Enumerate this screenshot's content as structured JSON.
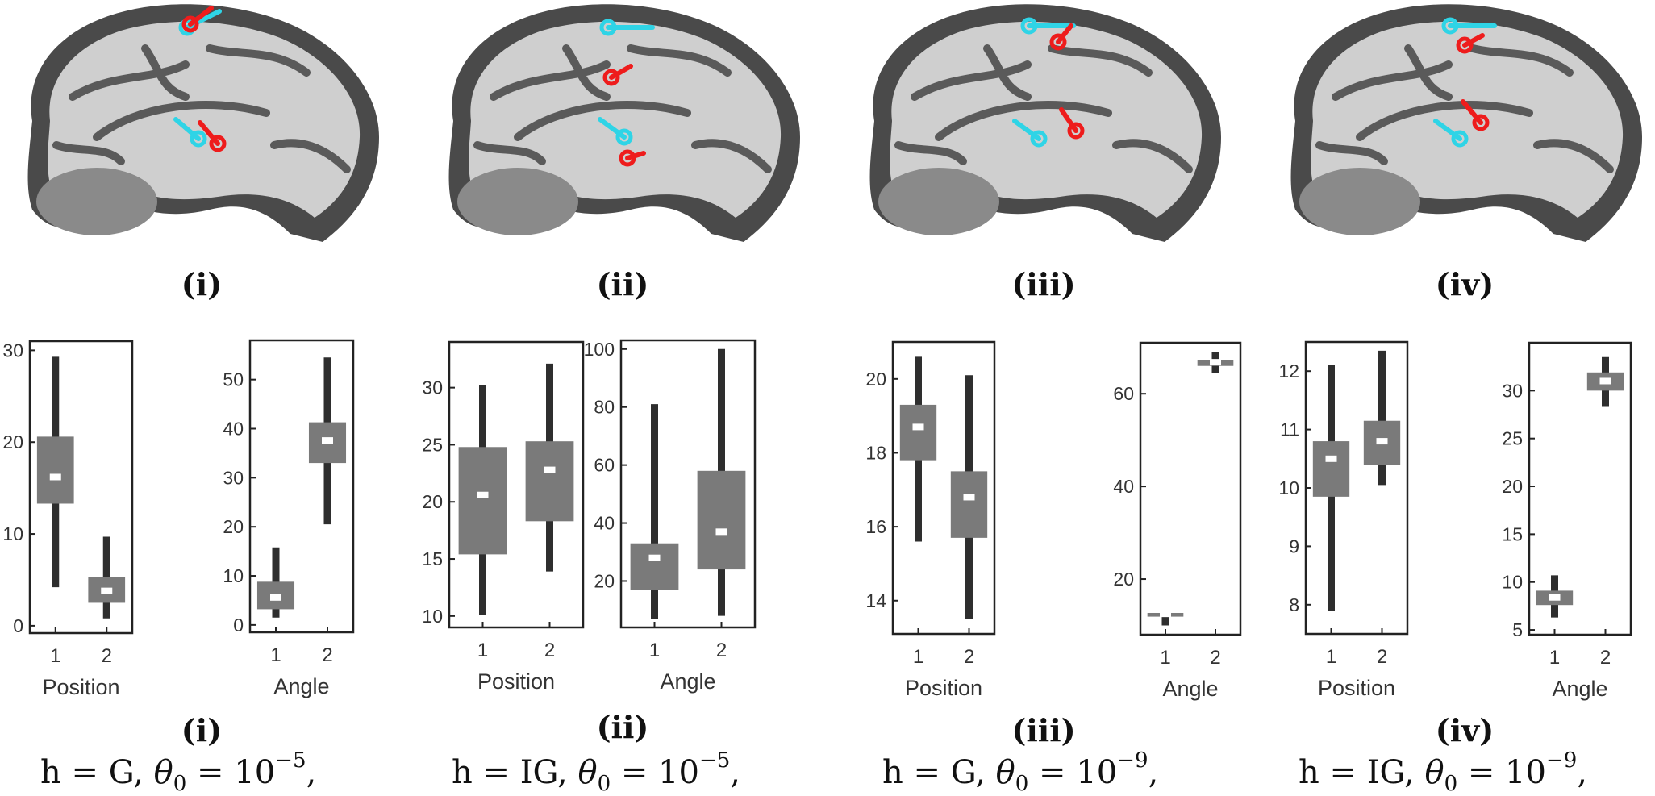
{
  "panels": [
    {
      "label": "(i)",
      "caption": {
        "h": "G",
        "exponent": "−5"
      },
      "chart_data": [
        {
          "type": "box",
          "xlabel": "Position",
          "categories": [
            "1",
            "2"
          ],
          "ylim": [
            -0.8,
            31
          ],
          "yticks": [
            0,
            10,
            20,
            30
          ],
          "boxes": [
            {
              "min": 4.2,
              "q1": 13.3,
              "median": 16.2,
              "q3": 20.6,
              "max": 29.3
            },
            {
              "min": 0.8,
              "q1": 2.5,
              "median": 3.8,
              "q3": 5.3,
              "max": 9.7
            }
          ]
        },
        {
          "type": "box",
          "xlabel": "Angle",
          "categories": [
            "1",
            "2"
          ],
          "ylim": [
            -1.5,
            58
          ],
          "yticks": [
            0,
            10,
            20,
            30,
            40,
            50
          ],
          "boxes": [
            {
              "min": 1.5,
              "q1": 3.2,
              "median": 5.6,
              "q3": 8.8,
              "max": 15.8
            },
            {
              "min": 20.5,
              "q1": 33.0,
              "median": 37.6,
              "q3": 41.3,
              "max": 54.5
            }
          ]
        }
      ]
    },
    {
      "label": "(ii)",
      "caption": {
        "h": "IG",
        "exponent": "−5"
      },
      "chart_data": [
        {
          "type": "box",
          "xlabel": "Position",
          "categories": [
            "1",
            "2"
          ],
          "ylim": [
            9.0,
            34.0
          ],
          "yticks": [
            10,
            15,
            20,
            25,
            30
          ],
          "boxes": [
            {
              "min": 10.1,
              "q1": 15.4,
              "median": 20.6,
              "q3": 24.8,
              "max": 30.2
            },
            {
              "min": 13.9,
              "q1": 18.3,
              "median": 22.8,
              "q3": 25.3,
              "max": 32.1
            }
          ]
        },
        {
          "type": "box",
          "xlabel": "Angle",
          "categories": [
            "1",
            "2"
          ],
          "ylim": [
            4.0,
            103.0
          ],
          "yticks": [
            20,
            40,
            60,
            80,
            100
          ],
          "boxes": [
            {
              "min": 7,
              "q1": 17,
              "median": 28,
              "q3": 33,
              "max": 81
            },
            {
              "min": 8,
              "q1": 24,
              "median": 37,
              "q3": 58,
              "max": 100
            }
          ]
        }
      ]
    },
    {
      "label": "(iii)",
      "caption": {
        "h": "G",
        "exponent": "−9"
      },
      "chart_data": [
        {
          "type": "box",
          "xlabel": "Position",
          "categories": [
            "1",
            "2"
          ],
          "ylim": [
            13.1,
            21.0
          ],
          "yticks": [
            14,
            16,
            18,
            20
          ],
          "boxes": [
            {
              "min": 15.6,
              "q1": 17.8,
              "median": 18.7,
              "q3": 19.3,
              "max": 20.6
            },
            {
              "min": 13.5,
              "q1": 15.7,
              "median": 16.8,
              "q3": 17.5,
              "max": 20.1
            }
          ]
        },
        {
          "type": "box",
          "xlabel": "Angle",
          "categories": [
            "1",
            "2"
          ],
          "ylim": [
            8.0,
            71.0
          ],
          "yticks": [
            20,
            40,
            60
          ],
          "boxes": [
            {
              "min": 10.0,
              "q1": 11.9,
              "median": 12.5,
              "q3": 12.7,
              "max": 13.0
            },
            {
              "min": 64.5,
              "q1": 66.0,
              "median": 66.8,
              "q3": 67.2,
              "max": 69.0
            }
          ]
        }
      ]
    },
    {
      "label": "(iv)",
      "caption": {
        "h": "IG",
        "exponent": "−9"
      },
      "chart_data": [
        {
          "type": "box",
          "xlabel": "Position",
          "categories": [
            "1",
            "2"
          ],
          "ylim": [
            7.5,
            12.5
          ],
          "yticks": [
            8,
            9,
            10,
            11,
            12
          ],
          "boxes": [
            {
              "min": 7.9,
              "q1": 9.85,
              "median": 10.5,
              "q3": 10.8,
              "max": 12.1
            },
            {
              "min": 10.05,
              "q1": 10.4,
              "median": 10.8,
              "q3": 11.15,
              "max": 12.35
            }
          ]
        },
        {
          "type": "box",
          "xlabel": "Angle",
          "categories": [
            "1",
            "2"
          ],
          "ylim": [
            4.5,
            35.0
          ],
          "yticks": [
            5,
            10,
            15,
            20,
            25,
            30
          ],
          "boxes": [
            {
              "min": 6.3,
              "q1": 7.6,
              "median": 8.4,
              "q3": 9.1,
              "max": 10.7
            },
            {
              "min": 28.3,
              "q1": 30.0,
              "median": 31.0,
              "q3": 31.9,
              "max": 33.5
            }
          ]
        }
      ]
    }
  ],
  "caption_parts": {
    "prefix": "h = ",
    "theta": "θ",
    "sub": "0",
    "eq": " = 10",
    "suffix": ","
  },
  "colors": {
    "box": "#7a7a7a",
    "whisker": "#2e2e2e",
    "median": "#ffffff",
    "cyan": "#2fd4e6",
    "red": "#ee1c1c",
    "cortex_dark": "#4a4a4a",
    "cortex_light": "#cfcfcf"
  }
}
